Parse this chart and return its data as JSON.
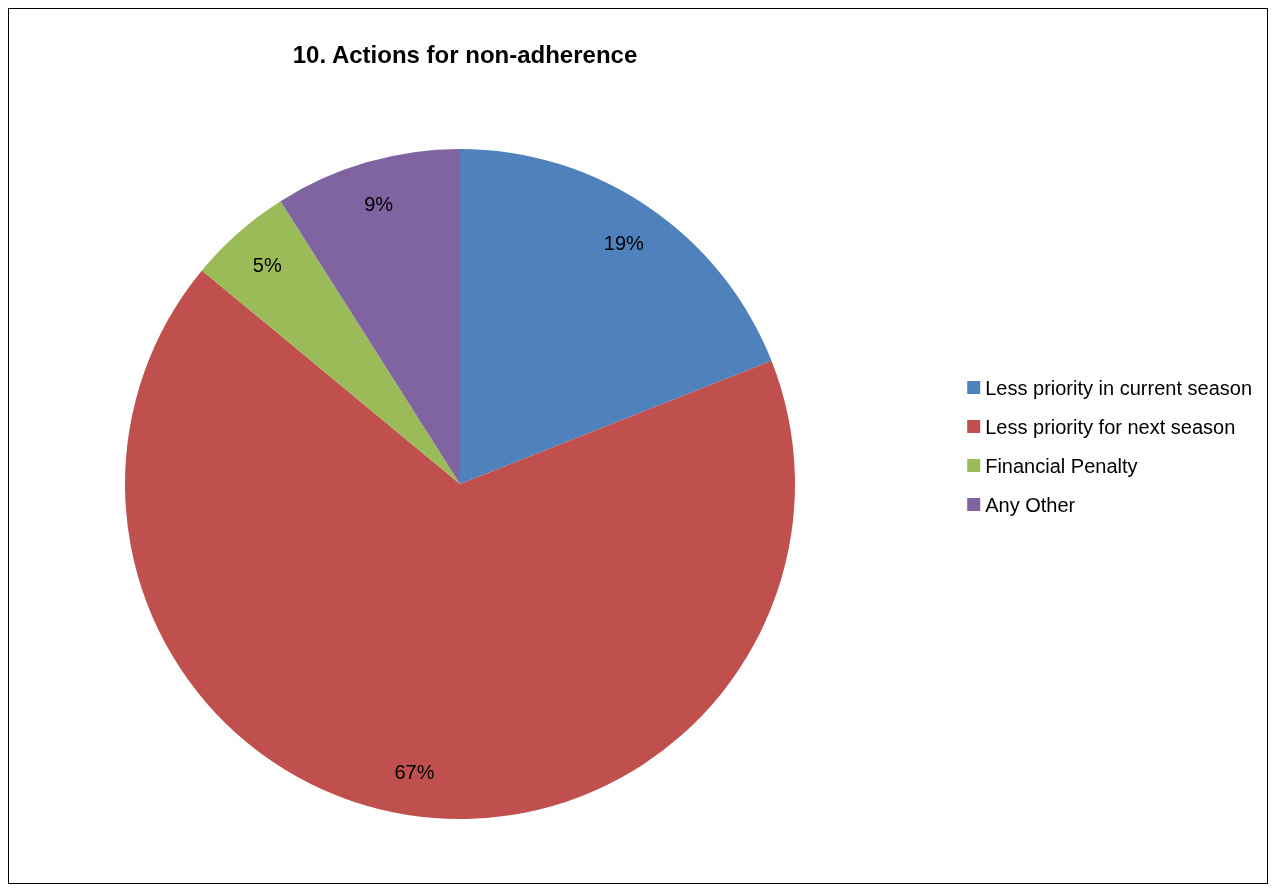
{
  "chart_data": {
    "type": "pie",
    "title": "10. Actions for non-adherence",
    "categories": [
      "Less priority in current season",
      "Less priority for next season",
      "Financial Penalty",
      "Any Other"
    ],
    "values": [
      19,
      67,
      5,
      9
    ],
    "colors": [
      "#4f81bd",
      "#c0504d",
      "#9bbb59",
      "#8064a2"
    ],
    "value_labels": [
      "19%",
      "67%",
      "5%",
      "9%"
    ],
    "legend": "right"
  }
}
